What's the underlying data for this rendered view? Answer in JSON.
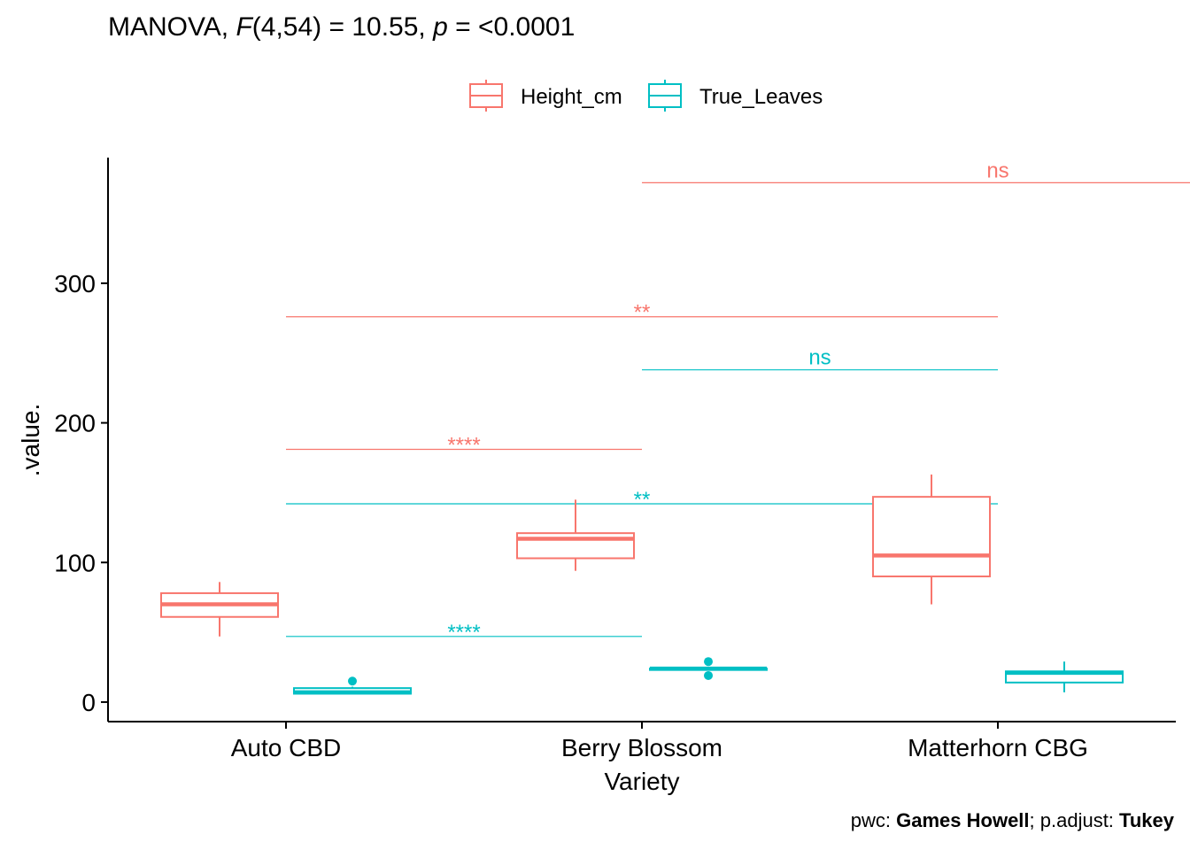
{
  "chart_data": {
    "type": "boxplot",
    "title_parts": {
      "prefix": "MANOVA, ",
      "F_symbol": "F",
      "df": "(4,54) = 10.55, ",
      "p_symbol": "p",
      "p_value": " = <0.0001"
    },
    "xlabel": "Variety",
    "ylabel": ".value.",
    "categories": [
      "Auto CBD",
      "Berry Blossom",
      "Matterhorn CBG"
    ],
    "ylim": [
      -14,
      390
    ],
    "yticks": [
      0,
      100,
      200,
      300
    ],
    "grid": false,
    "legend_position": "top",
    "series": [
      {
        "name": "Height_cm",
        "color": "#F8766D",
        "boxes": [
          {
            "min": 47,
            "q1": 61,
            "median": 70,
            "q3": 78,
            "max": 86,
            "outliers": []
          },
          {
            "min": 94,
            "q1": 103,
            "median": 117,
            "q3": 121,
            "max": 145,
            "outliers": []
          },
          {
            "min": 70,
            "q1": 90,
            "median": 105,
            "q3": 147,
            "max": 163,
            "outliers": []
          }
        ]
      },
      {
        "name": "True_Leaves",
        "color": "#00BFC4",
        "boxes": [
          {
            "min": 6,
            "q1": 6,
            "median": 7,
            "q3": 10,
            "max": 11,
            "outliers": [
              15
            ]
          },
          {
            "min": 23,
            "q1": 23,
            "median": 24,
            "q3": 24,
            "max": 24,
            "outliers": [
              29,
              19
            ]
          },
          {
            "min": 7,
            "q1": 14,
            "median": 21,
            "q3": 22,
            "max": 29,
            "outliers": []
          }
        ]
      }
    ],
    "comparisons": [
      {
        "from": 1,
        "to": 3,
        "y": 372,
        "label": "ns",
        "series": 0
      },
      {
        "from": 0,
        "to": 2,
        "y": 276,
        "label": "**",
        "series": 0
      },
      {
        "from": 1,
        "to": 2,
        "y": 238,
        "label": "ns",
        "series": 1
      },
      {
        "from": 0,
        "to": 1,
        "y": 181,
        "label": "****",
        "series": 0
      },
      {
        "from": 0,
        "to": 2,
        "y": 142,
        "label": "**",
        "series": 1
      },
      {
        "from": 0,
        "to": 1,
        "y": 47,
        "label": "****",
        "series": 1
      }
    ],
    "caption_parts": {
      "pwc_label": "pwc: ",
      "pwc_method": "Games Howell",
      "padj_label": "; p.adjust: ",
      "padj_method": "Tukey"
    },
    "axis_color": "#000000"
  }
}
